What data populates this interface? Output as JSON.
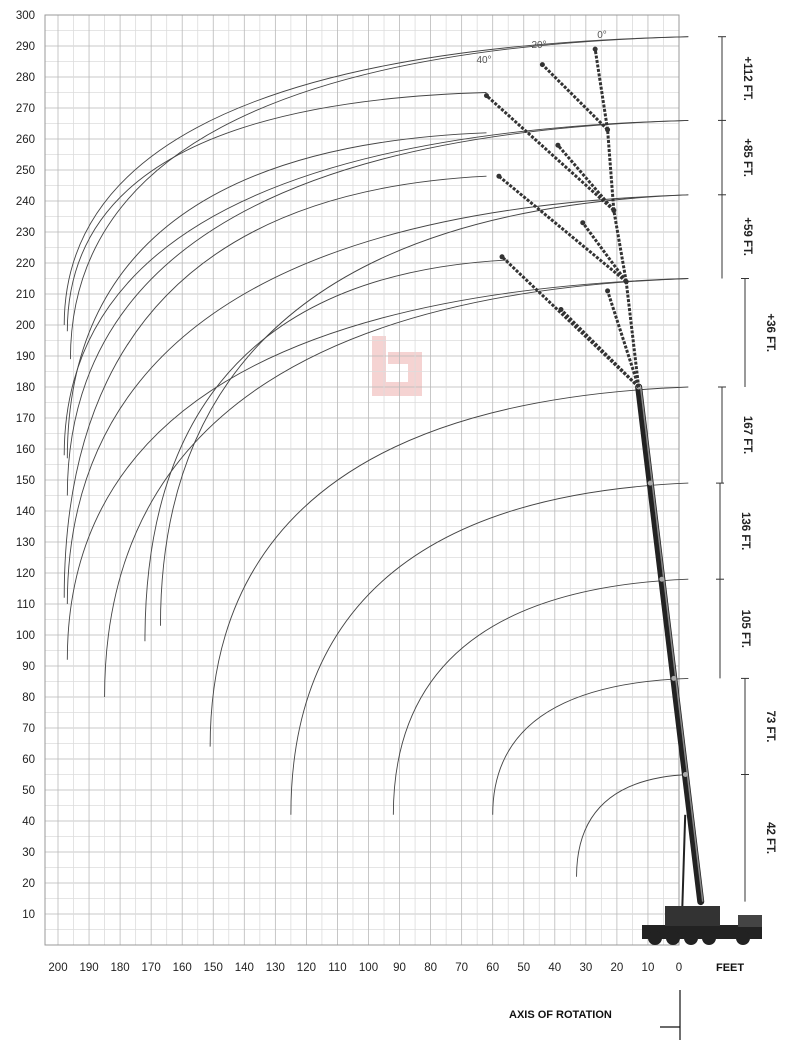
{
  "chart_data": {
    "type": "line",
    "title": "",
    "xlabel": "FEET",
    "ylabel": "",
    "xlim": [
      200,
      -8
    ],
    "ylim": [
      0,
      300
    ],
    "grid": true,
    "x_ticks": [
      "200",
      "190",
      "180",
      "170",
      "160",
      "150",
      "140",
      "130",
      "120",
      "110",
      "100",
      "90",
      "80",
      "70",
      "60",
      "50",
      "40",
      "30",
      "20",
      "10",
      "0"
    ],
    "y_ticks": [
      "10",
      "20",
      "30",
      "40",
      "50",
      "60",
      "70",
      "80",
      "90",
      "100",
      "110",
      "120",
      "130",
      "140",
      "150",
      "160",
      "170",
      "180",
      "190",
      "200",
      "210",
      "220",
      "230",
      "240",
      "250",
      "260",
      "270",
      "280",
      "290",
      "300"
    ],
    "axis_of_rotation_label": "AXIS OF ROTATION",
    "boom_sections": [
      {
        "label": "42 FT.",
        "tip_height": 55
      },
      {
        "label": "73 FT.",
        "tip_height": 86
      },
      {
        "label": "105 FT.",
        "tip_height": 118
      },
      {
        "label": "136 FT.",
        "tip_height": 149
      },
      {
        "label": "167 FT.",
        "tip_height": 180
      }
    ],
    "jib_extensions": [
      {
        "label": "+36 FT.",
        "tip_height": 215
      },
      {
        "label": "+59 FT.",
        "tip_height": 242
      },
      {
        "label": "+85 FT.",
        "tip_height": 266
      },
      {
        "label": "+112 FT.",
        "tip_height": 293
      }
    ],
    "offset_angles": [
      "40°",
      "20°",
      "0°"
    ],
    "range_arcs": [
      {
        "from": [
          33,
          22
        ],
        "to": [
          -3,
          55
        ]
      },
      {
        "from": [
          60,
          42
        ],
        "to": [
          -3,
          86
        ]
      },
      {
        "from": [
          92,
          42
        ],
        "to": [
          -3,
          118
        ]
      },
      {
        "from": [
          125,
          42
        ],
        "to": [
          -3,
          149
        ]
      },
      {
        "from": [
          151,
          64
        ],
        "to": [
          -3,
          180
        ]
      },
      {
        "from": [
          185,
          80
        ],
        "to": [
          -3,
          215
        ]
      },
      {
        "from": [
          197,
          92
        ],
        "to": [
          -3,
          215
        ]
      },
      {
        "from": [
          172,
          98
        ],
        "to": [
          55,
          221
        ]
      },
      {
        "from": [
          167,
          103
        ],
        "to": [
          -3,
          242
        ]
      },
      {
        "from": [
          197,
          110
        ],
        "to": [
          -3,
          242
        ]
      },
      {
        "from": [
          198,
          112
        ],
        "to": [
          62,
          248
        ]
      },
      {
        "from": [
          197,
          145
        ],
        "to": [
          -3,
          266
        ]
      },
      {
        "from": [
          198,
          158
        ],
        "to": [
          -3,
          266
        ]
      },
      {
        "from": [
          197,
          157
        ],
        "to": [
          62,
          262
        ]
      },
      {
        "from": [
          196,
          189
        ],
        "to": [
          -3,
          293
        ]
      },
      {
        "from": [
          198,
          200
        ],
        "to": [
          -3,
          293
        ]
      },
      {
        "from": [
          197,
          198
        ],
        "to": [
          62,
          275
        ]
      }
    ],
    "boom": {
      "base": [
        -7,
        14
      ],
      "tip": [
        13,
        180
      ]
    },
    "jib_offsets": [
      {
        "from": [
          13,
          180
        ],
        "points": [
          [
            17,
            214
          ],
          [
            23,
            211
          ],
          [
            38,
            205
          ],
          [
            57,
            222
          ]
        ]
      },
      {
        "from": [
          17,
          214
        ],
        "points": [
          [
            21,
            237
          ],
          [
            31,
            233
          ],
          [
            58,
            248
          ]
        ]
      },
      {
        "from": [
          21,
          237
        ],
        "points": [
          [
            23,
            263
          ],
          [
            39,
            258
          ],
          [
            62,
            274
          ]
        ]
      },
      {
        "from": [
          23,
          263
        ],
        "points": [
          [
            27,
            289
          ],
          [
            44,
            284
          ]
        ]
      }
    ]
  }
}
